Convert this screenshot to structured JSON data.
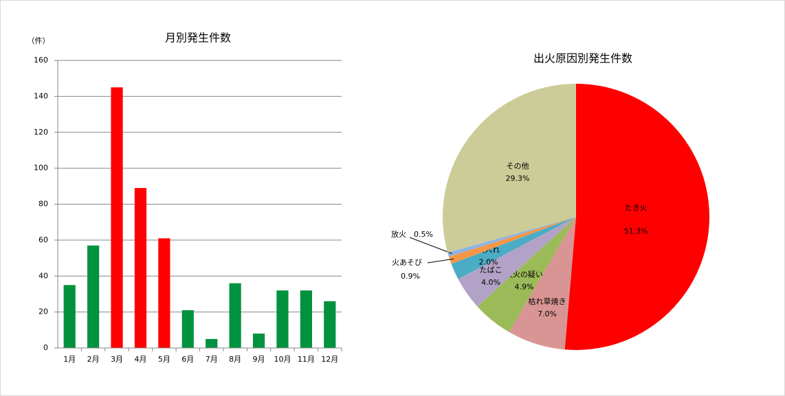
{
  "chart_data": [
    {
      "type": "bar",
      "title": "月別発生件数",
      "y_label": "（件）",
      "categories": [
        "1月",
        "2月",
        "3月",
        "4月",
        "5月",
        "6月",
        "7月",
        "8月",
        "9月",
        "10月",
        "11月",
        "12月"
      ],
      "values": [
        35,
        57,
        145,
        89,
        61,
        21,
        5,
        36,
        8,
        32,
        32,
        26
      ],
      "colors": [
        "#00923f",
        "#00923f",
        "#ff0000",
        "#ff0000",
        "#ff0000",
        "#00923f",
        "#00923f",
        "#00923f",
        "#00923f",
        "#00923f",
        "#00923f",
        "#00923f"
      ],
      "ylim": [
        0,
        160
      ],
      "yticks": [
        0,
        20,
        40,
        60,
        80,
        100,
        120,
        140,
        160
      ],
      "grid": true
    },
    {
      "type": "pie",
      "title": "出火原因別発生件数",
      "categories": [
        "たき火",
        "枯れ草焼き",
        "放火の疑い",
        "たばこ",
        "火入れ",
        "火あそび",
        "放火",
        "その他"
      ],
      "values": [
        51.3,
        7.0,
        4.9,
        4.0,
        2.0,
        0.9,
        0.5,
        29.3
      ],
      "value_labels": [
        "51.3%",
        "7.0%",
        "4.9%",
        "4.0%",
        "2.0%",
        "0.9%",
        "0.5%",
        "29.3%"
      ],
      "colors": [
        "#ff0000",
        "#d99594",
        "#9bbb59",
        "#b3a2c7",
        "#4bacc6",
        "#f79646",
        "#8eb4e3",
        "#cccc99"
      ]
    }
  ]
}
